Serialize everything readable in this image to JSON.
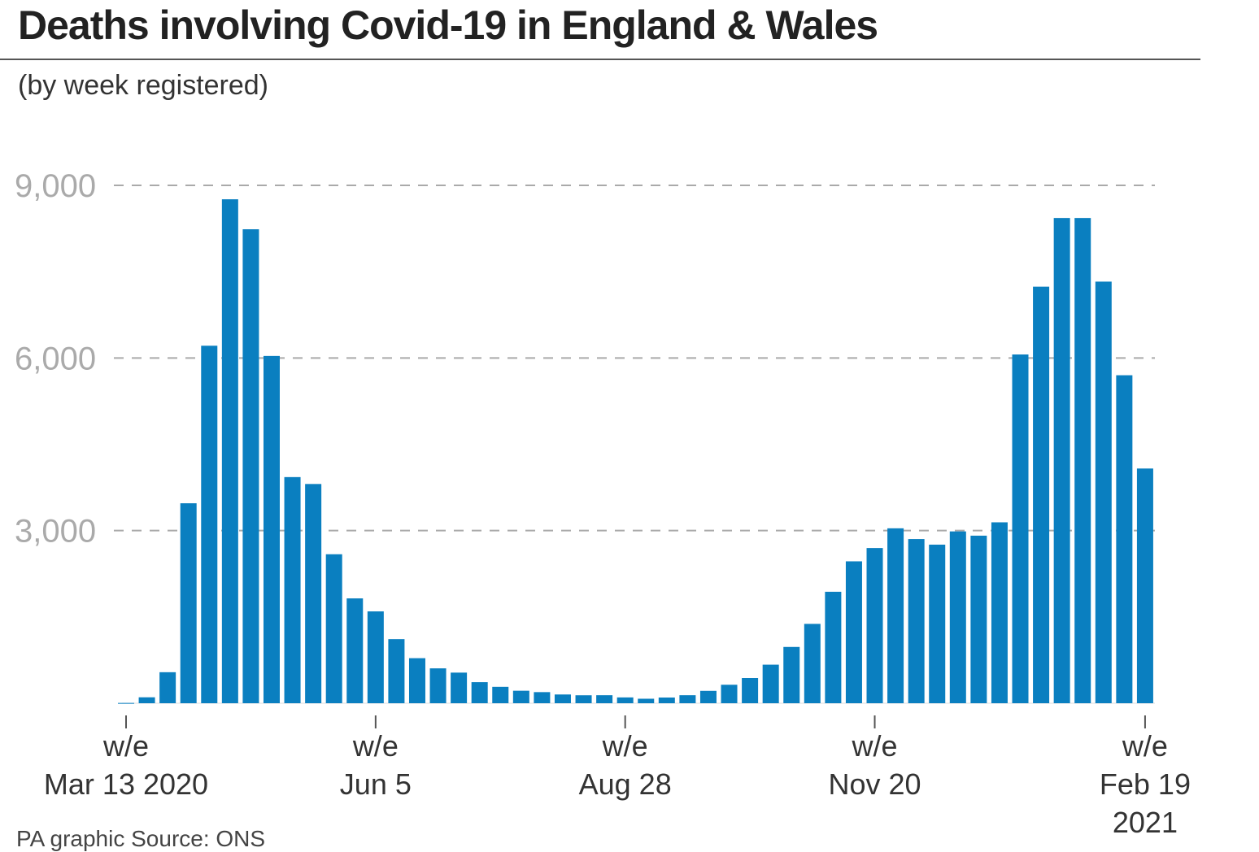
{
  "chart_data": {
    "type": "bar",
    "title": "Deaths involving Covid-19 in England & Wales",
    "subtitle": "(by week registered)",
    "source": "PA graphic Source: ONS",
    "xlabel": "",
    "ylabel": "",
    "ylim": [
      0,
      9000
    ],
    "yticks": [
      "9,000",
      "6,000",
      "3,000"
    ],
    "ytick_values": [
      9000,
      6000,
      3000
    ],
    "grid": "horizontal dashed",
    "bar_color": "#0a7fc0",
    "xtick_labels": [
      {
        "index": 0,
        "lines": [
          "w/e",
          "Mar 13 2020"
        ]
      },
      {
        "index": 12,
        "lines": [
          "w/e",
          "Jun 5"
        ]
      },
      {
        "index": 24,
        "lines": [
          "w/e",
          "Aug 28"
        ]
      },
      {
        "index": 36,
        "lines": [
          "w/e",
          "Nov 20"
        ]
      },
      {
        "index": 49,
        "lines": [
          "w/e",
          "Feb 19",
          "2021"
        ]
      }
    ],
    "values": [
      5,
      103,
      539,
      3475,
      6213,
      8758,
      8237,
      6035,
      3930,
      3810,
      2589,
      1822,
      1596,
      1114,
      783,
      606,
      532,
      366,
      285,
      217,
      193,
      152,
      138,
      139,
      101,
      78,
      99,
      139,
      215,
      321,
      438,
      670,
      978,
      1379,
      1937,
      2466,
      2697,
      3040,
      2853,
      2756,
      2986,
      2912,
      3144,
      6061,
      7239,
      8433,
      8433,
      7327,
      5700,
      4079
    ]
  }
}
